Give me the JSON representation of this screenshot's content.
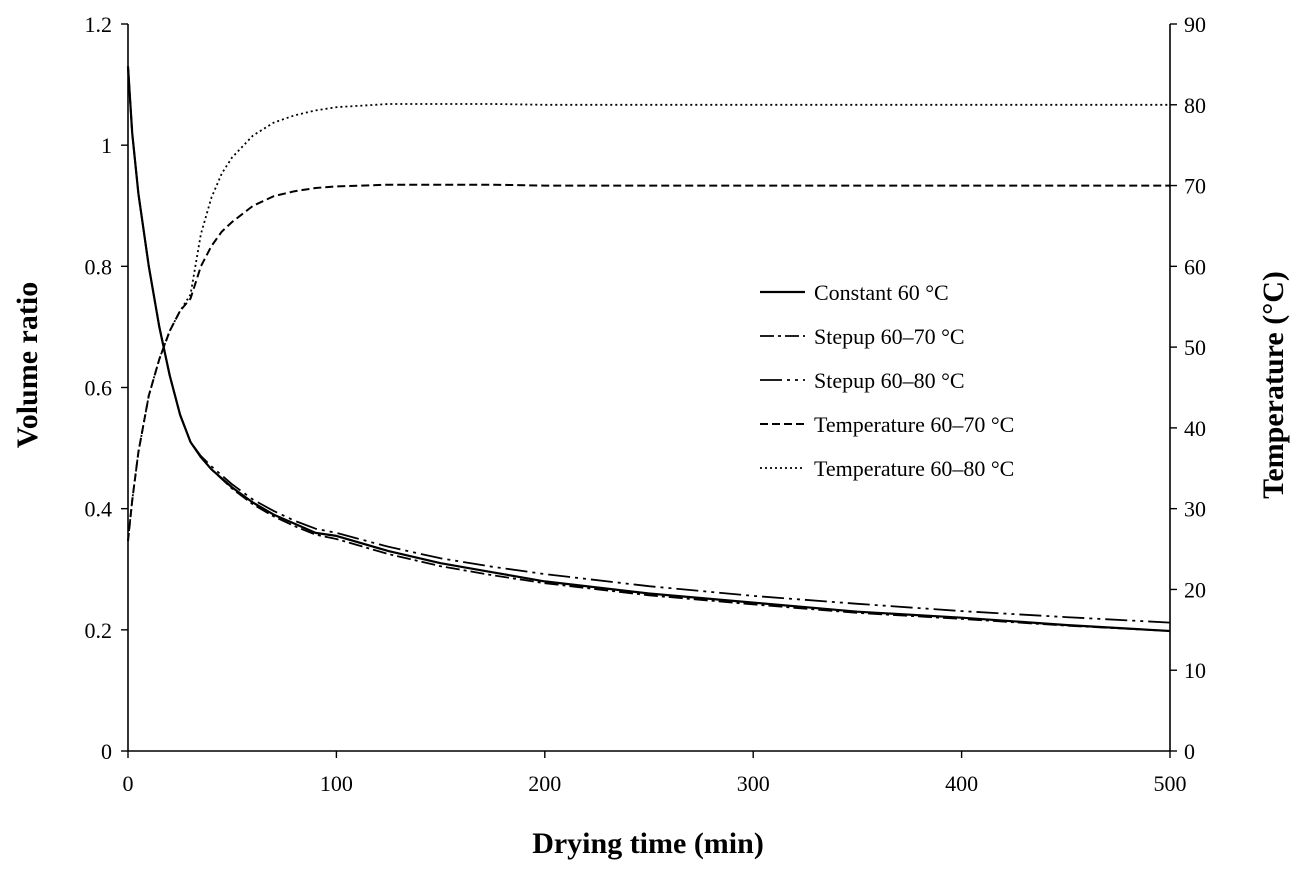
{
  "chart_data": {
    "type": "line",
    "title": "",
    "xlabel": "Drying time (min)",
    "ylabel": "Volume ratio",
    "y2label": "Temperature (°C)",
    "xlim": [
      0,
      500
    ],
    "ylim": [
      0,
      1.2
    ],
    "y2lim": [
      0,
      90
    ],
    "xticks": [
      0,
      100,
      200,
      300,
      400,
      500
    ],
    "yticks": [
      0,
      0.2,
      0.4,
      0.6,
      0.8,
      1,
      1.2
    ],
    "yticklabels": [
      "0",
      "0.2",
      "0.4",
      "0.6",
      "0.8",
      "1",
      "1.2"
    ],
    "y2ticks": [
      0,
      10,
      20,
      30,
      40,
      50,
      60,
      70,
      80,
      90
    ],
    "grid": false,
    "legend_position": "center-right",
    "series": [
      {
        "name": "Constant 60 °C",
        "axis": "left",
        "dash": "solid",
        "x": [
          0,
          2,
          5,
          10,
          15,
          20,
          25,
          30,
          35,
          40,
          50,
          60,
          70,
          80,
          90,
          100,
          125,
          150,
          175,
          200,
          250,
          300,
          350,
          400,
          450,
          500
        ],
        "y": [
          1.13,
          1.02,
          0.92,
          0.8,
          0.7,
          0.62,
          0.555,
          0.51,
          0.485,
          0.465,
          0.435,
          0.41,
          0.39,
          0.375,
          0.36,
          0.355,
          0.33,
          0.31,
          0.295,
          0.28,
          0.26,
          0.245,
          0.23,
          0.22,
          0.208,
          0.198
        ]
      },
      {
        "name": "Stepup 60–70 °C",
        "axis": "left",
        "dash": "dashdot",
        "x": [
          0,
          2,
          5,
          10,
          15,
          20,
          25,
          30,
          35,
          40,
          50,
          60,
          70,
          80,
          90,
          100,
          125,
          150,
          175,
          200,
          250,
          300,
          350,
          400,
          450,
          500
        ],
        "y": [
          1.13,
          1.02,
          0.92,
          0.8,
          0.7,
          0.62,
          0.555,
          0.51,
          0.485,
          0.465,
          0.433,
          0.407,
          0.387,
          0.371,
          0.357,
          0.35,
          0.325,
          0.305,
          0.29,
          0.277,
          0.257,
          0.242,
          0.228,
          0.218,
          0.207,
          0.198
        ]
      },
      {
        "name": "Stepup 60–80 °C",
        "axis": "left",
        "dash": "longdashdotdot",
        "x": [
          0,
          2,
          5,
          10,
          15,
          20,
          25,
          30,
          35,
          40,
          50,
          60,
          70,
          80,
          90,
          100,
          125,
          150,
          175,
          200,
          250,
          300,
          350,
          400,
          450,
          500
        ],
        "y": [
          1.13,
          1.02,
          0.92,
          0.8,
          0.7,
          0.62,
          0.555,
          0.51,
          0.487,
          0.47,
          0.44,
          0.415,
          0.396,
          0.38,
          0.367,
          0.36,
          0.337,
          0.318,
          0.304,
          0.292,
          0.272,
          0.256,
          0.243,
          0.231,
          0.221,
          0.212
        ]
      },
      {
        "name": "Temperature 60–70 °C",
        "axis": "right",
        "dash": "dashed",
        "x": [
          0,
          2,
          5,
          10,
          15,
          20,
          25,
          30,
          35,
          40,
          45,
          50,
          60,
          70,
          80,
          90,
          100,
          125,
          150,
          175,
          200,
          300,
          400,
          500
        ],
        "y": [
          26,
          31,
          37,
          44,
          48.5,
          52,
          54.5,
          56,
          60,
          62.5,
          64.3,
          65.5,
          67.5,
          68.7,
          69.3,
          69.7,
          69.9,
          70.1,
          70.1,
          70.1,
          70,
          70,
          70,
          70
        ]
      },
      {
        "name": "Temperature 60–80 °C",
        "axis": "right",
        "dash": "dotted",
        "x": [
          0,
          2,
          5,
          10,
          15,
          20,
          25,
          30,
          35,
          40,
          45,
          50,
          60,
          70,
          80,
          90,
          100,
          125,
          150,
          175,
          200,
          300,
          400,
          500
        ],
        "y": [
          26,
          31,
          37,
          44,
          48.5,
          52,
          54.5,
          56.5,
          64,
          68.5,
          71.5,
          73.5,
          76.2,
          77.8,
          78.7,
          79.3,
          79.7,
          80.1,
          80.1,
          80.1,
          80,
          80,
          80,
          80
        ]
      }
    ]
  }
}
